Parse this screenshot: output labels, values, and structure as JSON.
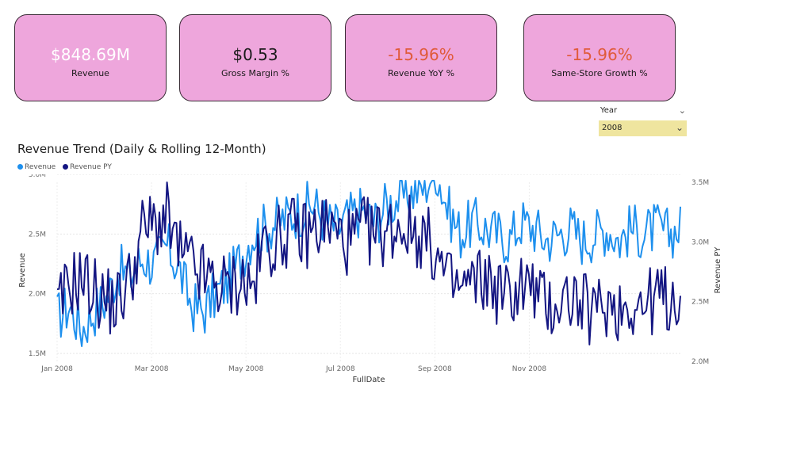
{
  "cards": [
    {
      "value": "$848.69M",
      "label": "Revenue",
      "color": "#ffffff"
    },
    {
      "value": "$0.53",
      "label": "Gross Margin %",
      "color": "#1a1a1a"
    },
    {
      "value": "-15.96%",
      "label": "Revenue YoY %",
      "color": "#e05a3a"
    },
    {
      "value": "-15.96%",
      "label": "Same-Store Growth %",
      "color": "#e05a3a"
    }
  ],
  "slicer": {
    "label": "Year",
    "value": "2008"
  },
  "chart_title": "Revenue Trend (Daily & Rolling 12-Month)",
  "chart_data": {
    "type": "line",
    "title": "Revenue Trend (Daily & Rolling 12-Month)",
    "xlabel": "FullDate",
    "ylabel": "Revenue",
    "y2label": "Revenue PY",
    "x_ticks": [
      "Jan 2008",
      "Mar 2008",
      "May 2008",
      "Jul 2008",
      "Sep 2008",
      "Nov 2008"
    ],
    "y_ticks": [
      "1.5M",
      "2.0M",
      "2.5M",
      "3.0M"
    ],
    "y2_ticks": [
      "2.0M",
      "2.5M",
      "3.0M",
      "3.5M"
    ],
    "ylim": [
      1.5,
      3.0
    ],
    "y2lim": [
      2.0,
      3.5
    ],
    "legend": "top-left",
    "grid": true,
    "series": [
      {
        "name": "Revenue",
        "color": "#1e90ee",
        "axis": "left",
        "values_weekly_M": [
          1.8,
          1.9,
          1.7,
          1.85,
          1.95,
          2.2,
          2.15,
          2.3,
          2.25,
          2.4,
          2.2,
          1.9,
          1.85,
          2.0,
          2.1,
          2.3,
          2.5,
          2.55,
          2.6,
          2.65,
          2.7,
          2.75,
          2.6,
          2.55,
          2.65,
          2.7,
          2.6,
          2.75,
          2.8,
          2.85,
          2.9,
          3.05,
          2.7,
          2.5,
          2.6,
          2.55,
          2.5,
          2.45,
          2.6,
          2.55,
          2.45,
          2.5,
          2.55,
          2.45,
          2.5,
          2.55,
          2.45,
          2.55,
          2.5,
          2.55,
          2.5,
          2.55
        ]
      },
      {
        "name": "Revenue PY",
        "color": "#141682",
        "axis": "right",
        "values_weekly_M": [
          2.4,
          2.65,
          2.7,
          2.6,
          2.5,
          2.5,
          2.7,
          3.1,
          3.15,
          3.2,
          2.9,
          2.8,
          2.7,
          2.65,
          2.6,
          2.7,
          2.6,
          3.0,
          3.0,
          3.1,
          3.05,
          3.1,
          3.15,
          3.05,
          3.0,
          3.1,
          3.05,
          3.1,
          3.15,
          3.1,
          3.05,
          2.9,
          2.65,
          2.6,
          2.65,
          2.7,
          2.6,
          2.55,
          2.65,
          2.6,
          2.45,
          2.5,
          2.55,
          2.45,
          2.4,
          2.5,
          2.45,
          2.5,
          2.45,
          2.55,
          2.5,
          2.6
        ]
      }
    ]
  }
}
